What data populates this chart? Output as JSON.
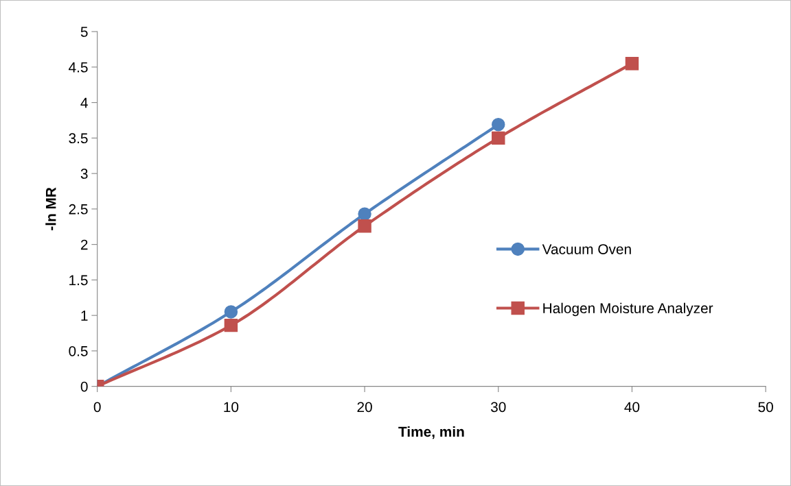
{
  "chart_data": {
    "type": "line",
    "xlabel": "Time, min",
    "ylabel": "-ln MR",
    "xlim": [
      0,
      50
    ],
    "xticks": [
      0,
      10,
      20,
      30,
      40,
      50
    ],
    "ylim": [
      0,
      5
    ],
    "yticks": [
      0,
      0.5,
      1,
      1.5,
      2,
      2.5,
      3,
      3.5,
      4,
      4.5,
      5
    ],
    "grid": false,
    "legend": "right",
    "line_style": "solid",
    "series": [
      {
        "name": "Vacuum Oven",
        "color": "#4f81bd",
        "marker": "circle",
        "x": [
          0,
          10,
          20,
          30
        ],
        "values": [
          0,
          1.05,
          2.43,
          3.69
        ]
      },
      {
        "name": "Halogen Moisture Analyzer",
        "color": "#c0504d",
        "marker": "square",
        "x": [
          0,
          10,
          20,
          30,
          40
        ],
        "values": [
          0,
          0.86,
          2.26,
          3.5,
          4.55
        ]
      }
    ]
  }
}
